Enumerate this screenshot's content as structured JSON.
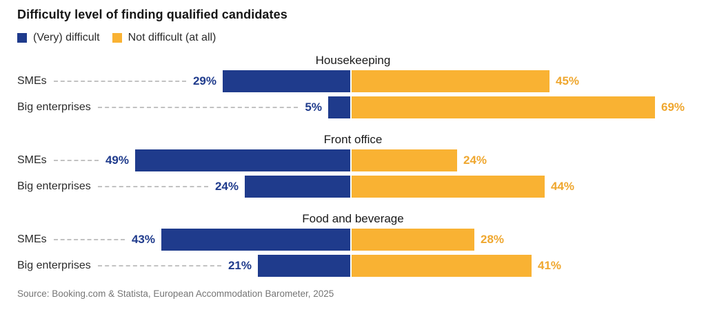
{
  "title": "Difficulty level of finding qualified candidates",
  "legend": {
    "items": [
      {
        "label": "(Very) difficult",
        "color": "#1F3B8C"
      },
      {
        "label": "Not difficult (at all)",
        "color": "#F9B233"
      }
    ]
  },
  "source": "Source: Booking.com & Statista, European Accommodation Barometer, 2025",
  "chart_data": {
    "type": "bar",
    "subtype": "diverging-horizontal-stacked",
    "title": "Difficulty level of finding qualified candidates",
    "unit": "%",
    "series_names": [
      "(Very) difficult",
      "Not difficult (at all)"
    ],
    "colors": {
      "difficult_bar": "#1F3B8C",
      "not_difficult_bar": "#F9B233",
      "difficult_value_label": "#1F3B8C",
      "not_difficult_value_label": "#EFA72F",
      "leader_line": "#C2C2C2"
    },
    "layout_hints": {
      "baseline": "shared central axis, difficult bars extend left, not-difficult bars extend right",
      "legend_position": "top-left under title",
      "grid": "off",
      "value_labels": "at outer ends of bars"
    },
    "groups": [
      {
        "category": "Housekeeping",
        "rows": [
          {
            "label": "SMEs",
            "difficult": 29,
            "not_difficult": 45
          },
          {
            "label": "Big enterprises",
            "difficult": 5,
            "not_difficult": 69
          }
        ]
      },
      {
        "category": "Front office",
        "rows": [
          {
            "label": "SMEs",
            "difficult": 49,
            "not_difficult": 24
          },
          {
            "label": "Big enterprises",
            "difficult": 24,
            "not_difficult": 44
          }
        ]
      },
      {
        "category": "Food and beverage",
        "rows": [
          {
            "label": "SMEs",
            "difficult": 43,
            "not_difficult": 28
          },
          {
            "label": "Big enterprises",
            "difficult": 21,
            "not_difficult": 41
          }
        ]
      }
    ]
  }
}
